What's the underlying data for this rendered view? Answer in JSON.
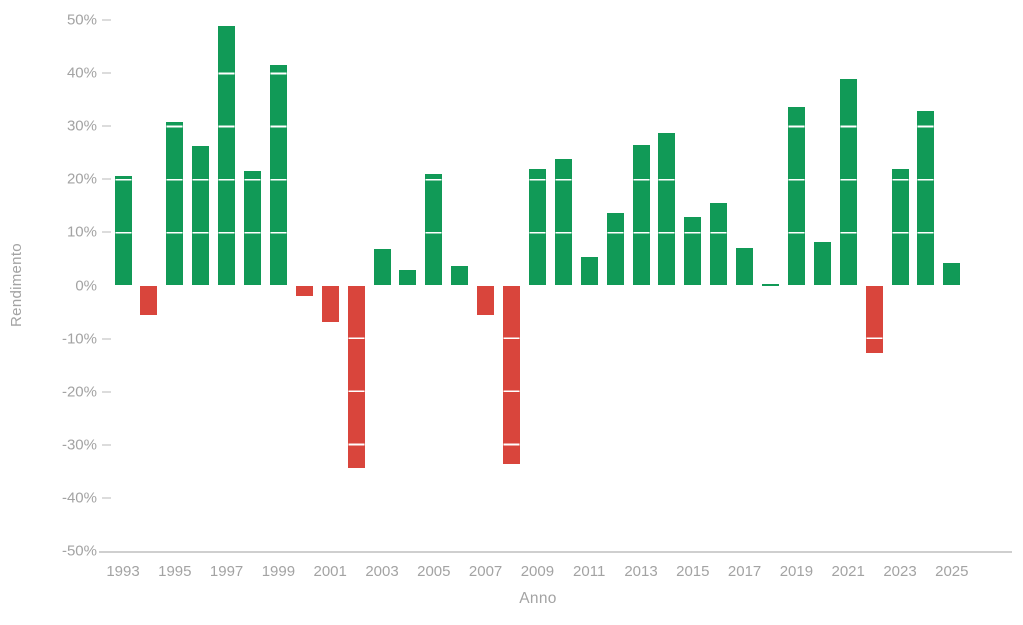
{
  "chart_data": {
    "type": "bar",
    "title": "",
    "xlabel": "Anno",
    "ylabel": "Rendimento",
    "categories": [
      1993,
      1994,
      1995,
      1996,
      1997,
      1998,
      1999,
      2000,
      2001,
      2002,
      2003,
      2004,
      2005,
      2006,
      2007,
      2008,
      2009,
      2010,
      2011,
      2012,
      2013,
      2014,
      2015,
      2016,
      2017,
      2018,
      2019,
      2020,
      2021,
      2022,
      2023,
      2024,
      2025
    ],
    "values": [
      20.6,
      -5.5,
      30.8,
      26.2,
      48.9,
      21.6,
      41.6,
      -1.9,
      -6.8,
      -34.4,
      6.8,
      2.9,
      21.0,
      3.7,
      -5.6,
      -33.7,
      22.0,
      23.9,
      5.4,
      13.6,
      26.4,
      28.8,
      12.9,
      15.5,
      7.0,
      0.3,
      33.7,
      8.2,
      38.9,
      -12.8,
      21.9,
      32.8,
      4.2
    ],
    "ylim": [
      -50,
      50
    ],
    "ytick_labels": [
      "50%",
      "40%",
      "30%",
      "20%",
      "10%",
      "0%",
      "-10%",
      "-20%",
      "-30%",
      "-40%",
      "-50%"
    ],
    "xtick_labels": [
      "1993",
      "1995",
      "1997",
      "1999",
      "2001",
      "2003",
      "2005",
      "2007",
      "2009",
      "2011",
      "2013",
      "2015",
      "2017",
      "2019",
      "2021",
      "2023",
      "2025"
    ],
    "positive_color": "#119a57",
    "negative_color": "#d9453c",
    "tick_text_color": "#a3a3a3",
    "segment_line_color": "rgba(255,255,255,0.68)",
    "grid": "off",
    "legend": "none",
    "notes": "white separator lines cross the bars at every 10% level"
  }
}
